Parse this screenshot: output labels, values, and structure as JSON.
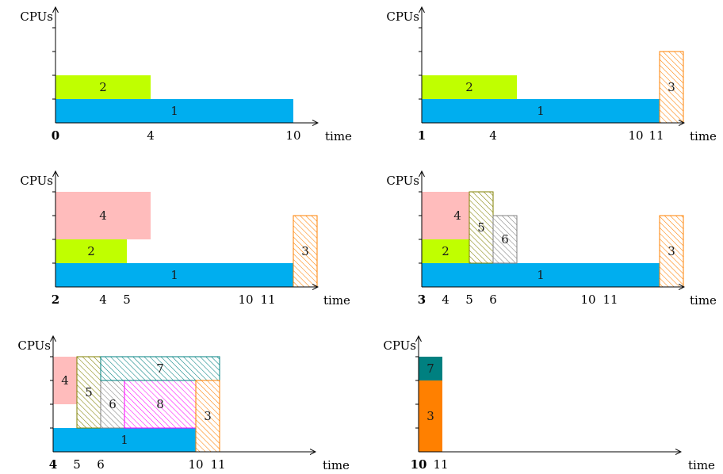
{
  "axis_labels": {
    "y": "CPUs",
    "x": "time"
  },
  "colors": {
    "blue": "#00aeef",
    "lime": "#c0ff00",
    "pink": "#ffbcbc",
    "orange": "#ff8000",
    "olive": "#808000",
    "gray": "#808080",
    "teal": "#008080",
    "magenta": "#ff00ff"
  },
  "panels": [
    {
      "step": "0",
      "ticks": [
        "0",
        "4",
        "10"
      ],
      "jobs": [
        {
          "label": "1",
          "t0": 0,
          "t1": 10,
          "c0": 0,
          "c1": 1,
          "color": "blue",
          "pattern": "solid"
        },
        {
          "label": "2",
          "t0": 0,
          "t1": 4,
          "c0": 1,
          "c1": 2,
          "color": "lime",
          "pattern": "solid"
        }
      ]
    },
    {
      "step": "1",
      "ticks": [
        "1",
        "4",
        "10",
        "11"
      ],
      "jobs": [
        {
          "label": "1",
          "t0": 0,
          "t1": 10,
          "c0": 0,
          "c1": 1,
          "color": "blue",
          "pattern": "solid"
        },
        {
          "label": "2",
          "t0": 0,
          "t1": 4,
          "c0": 1,
          "c1": 2,
          "color": "lime",
          "pattern": "solid"
        },
        {
          "label": "3",
          "t0": 10,
          "t1": 11,
          "c0": 0,
          "c1": 3,
          "color": "orange",
          "pattern": "hatch"
        }
      ]
    },
    {
      "step": "2",
      "ticks": [
        "2",
        "4",
        "5",
        "10",
        "11"
      ],
      "jobs": [
        {
          "label": "1",
          "t0": 0,
          "t1": 10,
          "c0": 0,
          "c1": 1,
          "color": "blue",
          "pattern": "solid"
        },
        {
          "label": "2",
          "t0": 0,
          "t1": 3,
          "c0": 1,
          "c1": 2,
          "color": "lime",
          "pattern": "solid"
        },
        {
          "label": "4",
          "t0": 0,
          "t1": 4,
          "c0": 2,
          "c1": 4,
          "color": "pink",
          "pattern": "solid"
        },
        {
          "label": "3",
          "t0": 10,
          "t1": 11,
          "c0": 0,
          "c1": 3,
          "color": "orange",
          "pattern": "hatch"
        }
      ]
    },
    {
      "step": "3",
      "ticks": [
        "3",
        "4",
        "5",
        "6",
        "10",
        "11"
      ],
      "jobs": [
        {
          "label": "1",
          "t0": 0,
          "t1": 10,
          "c0": 0,
          "c1": 1,
          "color": "blue",
          "pattern": "solid"
        },
        {
          "label": "2",
          "t0": 0,
          "t1": 2,
          "c0": 1,
          "c1": 2,
          "color": "lime",
          "pattern": "solid"
        },
        {
          "label": "4",
          "t0": 0,
          "t1": 3,
          "c0": 2,
          "c1": 4,
          "color": "pink",
          "pattern": "solid"
        },
        {
          "label": "5",
          "t0": 2,
          "t1": 3,
          "c0": 1,
          "c1": 4,
          "color": "olive",
          "pattern": "hatch"
        },
        {
          "label": "6",
          "t0": 3,
          "t1": 4,
          "c0": 1,
          "c1": 3,
          "color": "gray",
          "pattern": "hatch"
        },
        {
          "label": "3",
          "t0": 10,
          "t1": 11,
          "c0": 0,
          "c1": 3,
          "color": "orange",
          "pattern": "hatch"
        }
      ]
    },
    {
      "step": "4",
      "ticks": [
        "4",
        "5",
        "6",
        "10",
        "11"
      ],
      "jobs": [
        {
          "label": "1",
          "t0": 0,
          "t1": 6,
          "c0": 0,
          "c1": 1,
          "color": "blue",
          "pattern": "solid"
        },
        {
          "label": "4",
          "t0": 0,
          "t1": 1,
          "c0": 2,
          "c1": 4,
          "color": "pink",
          "pattern": "solid"
        },
        {
          "label": "5",
          "t0": 1,
          "t1": 2,
          "c0": 1,
          "c1": 4,
          "color": "olive",
          "pattern": "hatch"
        },
        {
          "label": "6",
          "t0": 2,
          "t1": 3,
          "c0": 1,
          "c1": 3,
          "color": "gray",
          "pattern": "hatch"
        },
        {
          "label": "8",
          "t0": 3,
          "t1": 6,
          "c0": 1,
          "c1": 3,
          "color": "magenta",
          "pattern": "hatch"
        },
        {
          "label": "7",
          "t0": 2,
          "t1": 7,
          "c0": 3,
          "c1": 4,
          "color": "teal",
          "pattern": "hatch"
        },
        {
          "label": "3",
          "t0": 6,
          "t1": 7,
          "c0": 0,
          "c1": 3,
          "color": "orange",
          "pattern": "hatch"
        }
      ]
    },
    {
      "step": "10",
      "ticks": [
        "10",
        "11"
      ],
      "jobs": [
        {
          "label": "3",
          "t0": 0,
          "t1": 1,
          "c0": 0,
          "c1": 3,
          "color": "orange",
          "pattern": "solid"
        },
        {
          "label": "7",
          "t0": 0,
          "t1": 1,
          "c0": 3,
          "c1": 4,
          "color": "teal",
          "pattern": "solid"
        }
      ]
    }
  ]
}
